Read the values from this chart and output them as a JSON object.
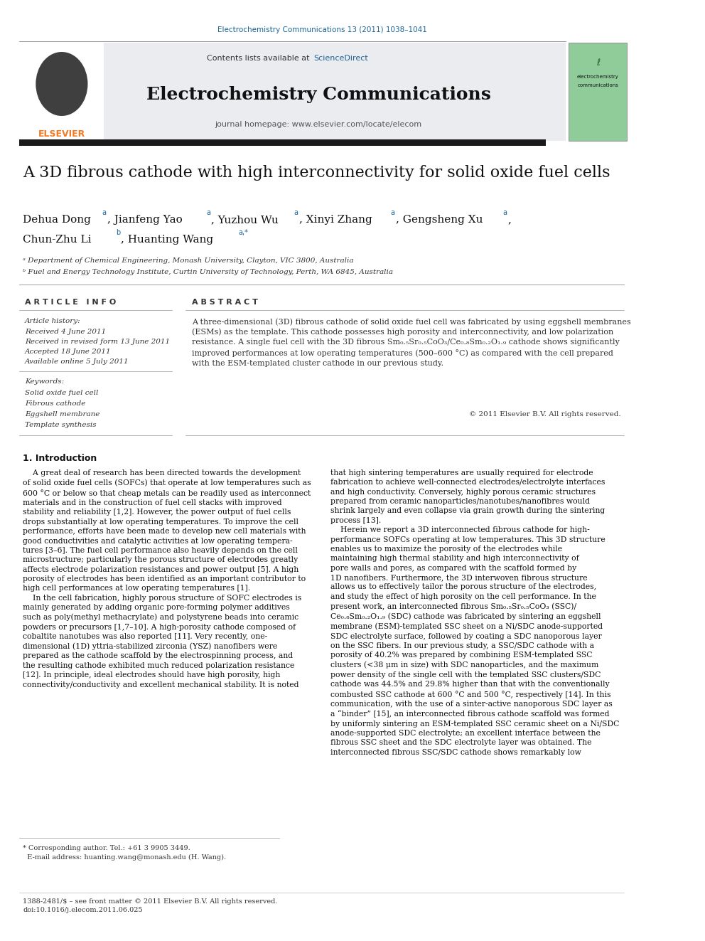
{
  "page_width": 9.92,
  "page_height": 13.23,
  "bg_color": "#ffffff",
  "header_journal_ref": "Electrochemistry Communications 13 (2011) 1038–1041",
  "link_blue": "#1a6496",
  "journal_title": "Electrochemistry Communications",
  "journal_homepage": "journal homepage: www.elsevier.com/locate/elecom",
  "paper_title": "A 3D fibrous cathode with high interconnectivity for solid oxide fuel cells",
  "article_info_header": "A R T I C L E   I N F O",
  "abstract_header": "A B S T R A C T",
  "article_history_label": "Article history:",
  "received": "Received 4 June 2011",
  "revised": "Received in revised form 13 June 2011",
  "accepted": "Accepted 18 June 2011",
  "available": "Available online 5 July 2011",
  "keywords_label": "Keywords:",
  "keywords": [
    "Solid oxide fuel cell",
    "Fibrous cathode",
    "Eggshell membrane",
    "Template synthesis"
  ],
  "copyright": "© 2011 Elsevier B.V. All rights reserved.",
  "intro_header": "1. Introduction",
  "footer_note": "* Corresponding author. Tel.: +61 3 9905 3449.\n  E-mail address: huanting.wang@monash.edu (H. Wang).",
  "footer_issn": "1388-2481/$ – see front matter © 2011 Elsevier B.V. All rights reserved.\ndoi:10.1016/j.elecom.2011.06.025",
  "elsevier_orange": "#f47920"
}
